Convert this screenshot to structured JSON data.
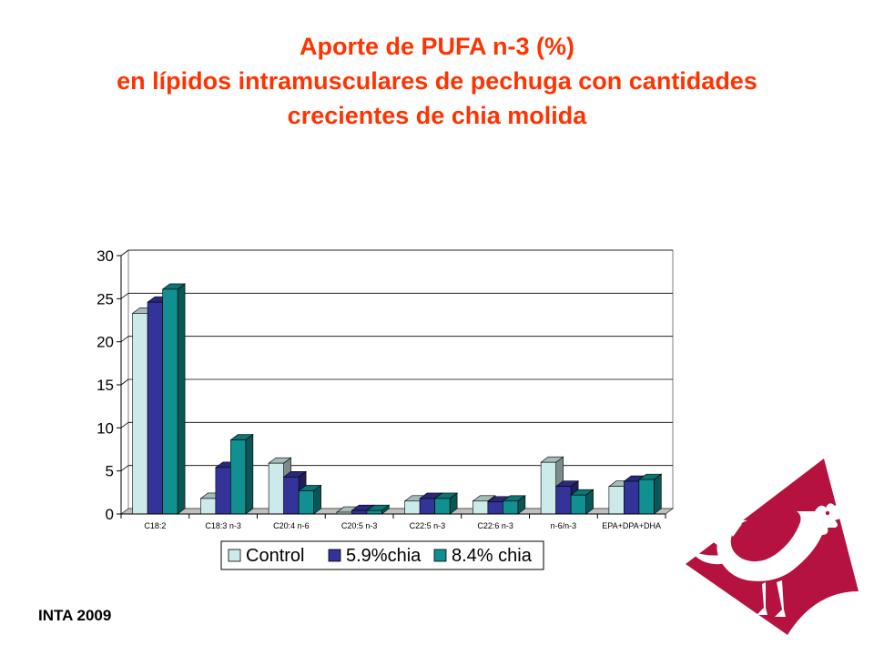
{
  "title": {
    "line1": "Aporte de PUFA n-3 (%)",
    "line2": "en  lípidos intramusculares de pechuga con cantidades",
    "line3": "crecientes de chia molida"
  },
  "footer": "INTA  2009",
  "colors": {
    "title": "#ff3300",
    "logo": "#b5123f",
    "series": [
      "#cdeaea",
      "#333399",
      "#109090"
    ]
  },
  "chart_data": {
    "type": "bar",
    "categories": [
      "C18:2",
      "C18:3 n-3",
      "C20:4 n-6",
      "C20:5 n-3",
      "C22:5 n-3",
      "C22:6 n-3",
      "n-6/n-3",
      "EPA+DPA+DHA"
    ],
    "series": [
      {
        "name": "Control",
        "values": [
          23.3,
          1.8,
          5.9,
          0.2,
          1.5,
          1.5,
          6.0,
          3.2
        ]
      },
      {
        "name": "5.9%chia",
        "values": [
          24.6,
          5.4,
          4.3,
          0.4,
          1.8,
          1.4,
          3.2,
          3.8
        ]
      },
      {
        "name": "8.4% chia",
        "values": [
          26.1,
          8.6,
          2.7,
          0.4,
          1.8,
          1.5,
          2.2,
          4.0
        ]
      }
    ],
    "yticks": [
      "0",
      "5",
      "10",
      "15",
      "20",
      "25",
      "30"
    ],
    "ylim": [
      0,
      30
    ],
    "grid": true,
    "legend_position": "bottom"
  }
}
